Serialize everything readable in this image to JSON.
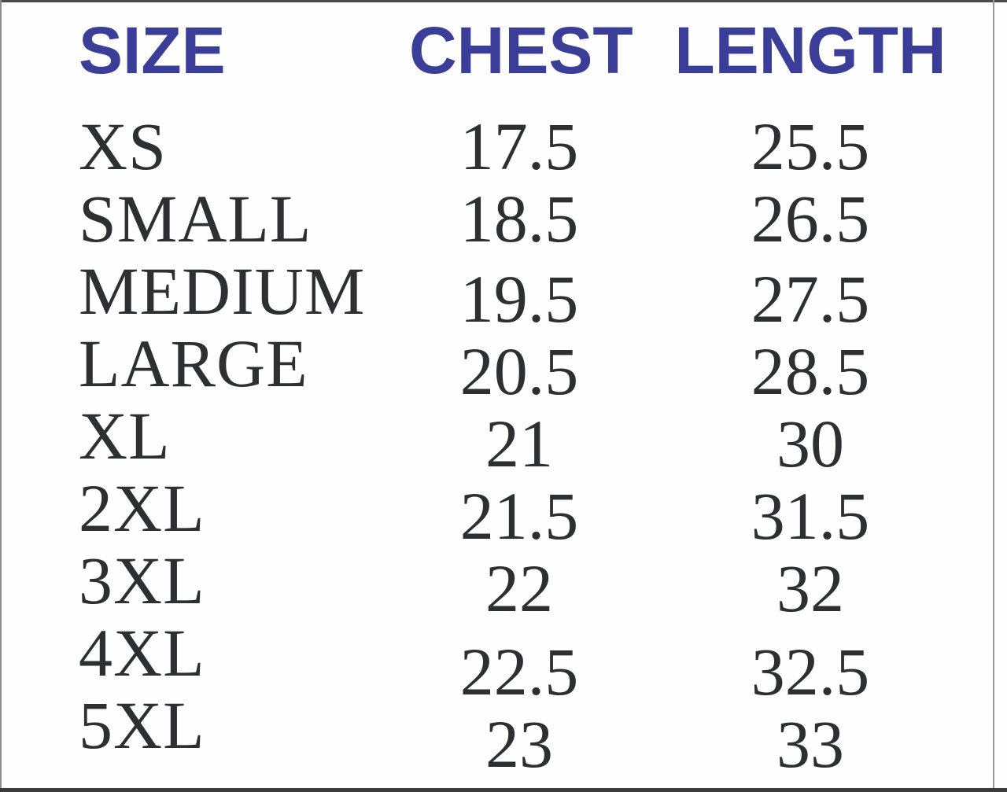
{
  "colors": {
    "header_text": "#3b3e99",
    "body_text": "#2e2f33",
    "bottom_border": "#3b3b3b"
  },
  "chart_data": {
    "type": "table",
    "title": "",
    "columns": [
      "SIZE",
      "CHEST",
      "LENGTH"
    ],
    "rows": [
      [
        "XS",
        "17.5",
        "25.5"
      ],
      [
        "SMALL",
        "18.5",
        "26.5"
      ],
      [
        "MEDIUM",
        "19.5",
        "27.5"
      ],
      [
        "LARGE",
        "20.5",
        "28.5"
      ],
      [
        "XL",
        "21",
        "30"
      ],
      [
        "2XL",
        "21.5",
        "31.5"
      ],
      [
        "3XL",
        "22",
        "32"
      ],
      [
        "4XL",
        "22.5",
        "32.5"
      ],
      [
        "5XL",
        "23",
        "33"
      ]
    ]
  }
}
